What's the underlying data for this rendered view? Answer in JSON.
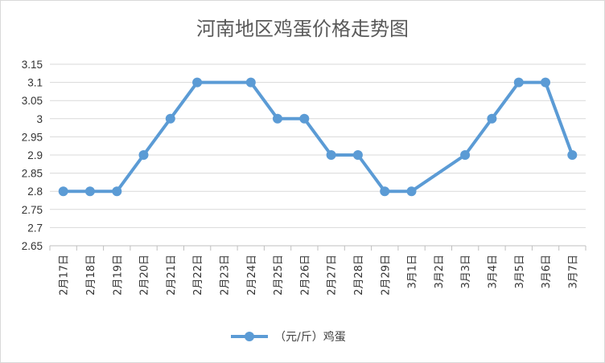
{
  "chart_data": {
    "type": "line",
    "title": "河南地区鸡蛋价格走势图",
    "categories": [
      "2月17日",
      "2月18日",
      "2月19日",
      "2月20日",
      "2月21日",
      "2月22日",
      "2月23日",
      "2月24日",
      "2月25日",
      "2月26日",
      "2月27日",
      "2月28日",
      "2月29日",
      "3月1日",
      "3月2日",
      "3月3日",
      "3月4日",
      "3月5日",
      "3月6日",
      "3月7日"
    ],
    "series": [
      {
        "name": "（元/斤）鸡蛋",
        "color": "#5b9bd5",
        "values": [
          2.8,
          2.8,
          2.8,
          2.9,
          3.0,
          3.1,
          null,
          3.1,
          3.0,
          3.0,
          2.9,
          2.9,
          2.8,
          2.8,
          null,
          2.9,
          3.0,
          3.1,
          3.1,
          2.9
        ]
      }
    ],
    "ylim": [
      2.65,
      3.15
    ],
    "yticks": [
      "2.65",
      "2.7",
      "2.75",
      "2.8",
      "2.85",
      "2.9",
      "2.95",
      "3",
      "3.05",
      "3.1",
      "3.15"
    ],
    "grid": true,
    "legend": "bottom",
    "xlabel": "",
    "ylabel": ""
  }
}
